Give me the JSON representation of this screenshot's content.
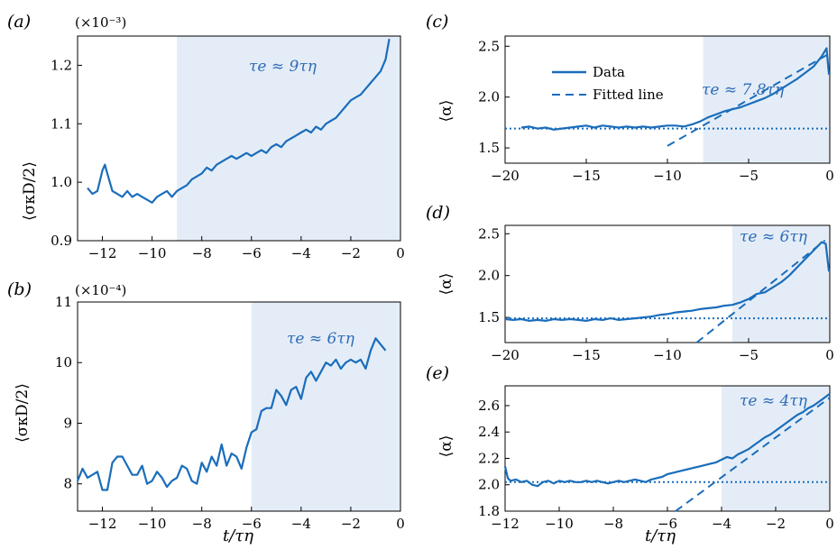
{
  "colors": {
    "line": "#1a6dbb",
    "shade": "#e4edf7",
    "annotation": "#2f6cb8"
  },
  "chart_data": [
    {
      "id": "a",
      "type": "line",
      "panel_label": "(a)",
      "multiplier": "(×10⁻³)",
      "ylabel": "⟨σκD/2⟩",
      "xlabel": "",
      "xlim": [
        -13,
        0
      ],
      "ylim": [
        0.9,
        1.25
      ],
      "xticks": [
        -12,
        -10,
        -8,
        -6,
        -4,
        -2,
        0
      ],
      "xtick_labels": [
        "−12",
        "−10",
        "−8",
        "−6",
        "−4",
        "−2",
        "0"
      ],
      "yticks": [
        0.9,
        1.0,
        1.1,
        1.2
      ],
      "ytick_labels": [
        "0.9",
        "1.0",
        "1.1",
        "1.2"
      ],
      "shaded_from": -9,
      "annotation": "τe ≈ 9τη",
      "series": [
        {
          "x": [
            -12.6,
            -12.4,
            -12.2,
            -12.0,
            -11.9,
            -11.8,
            -11.6,
            -11.4,
            -11.2,
            -11.0,
            -10.8,
            -10.6,
            -10.4,
            -10.2,
            -10.0,
            -9.8,
            -9.6,
            -9.4,
            -9.2,
            -9.0,
            -8.8,
            -8.6,
            -8.4,
            -8.2,
            -8.0,
            -7.8,
            -7.6,
            -7.4,
            -7.2,
            -7.0,
            -6.8,
            -6.6,
            -6.4,
            -6.2,
            -6.0,
            -5.8,
            -5.6,
            -5.4,
            -5.2,
            -5.0,
            -4.8,
            -4.6,
            -4.4,
            -4.2,
            -4.0,
            -3.8,
            -3.6,
            -3.4,
            -3.2,
            -3.0,
            -2.8,
            -2.6,
            -2.4,
            -2.2,
            -2.0,
            -1.8,
            -1.6,
            -1.4,
            -1.2,
            -1.0,
            -0.8,
            -0.6,
            -0.45
          ],
          "y": [
            0.99,
            0.98,
            0.985,
            1.02,
            1.03,
            1.015,
            0.985,
            0.98,
            0.975,
            0.985,
            0.975,
            0.98,
            0.975,
            0.97,
            0.965,
            0.975,
            0.98,
            0.985,
            0.975,
            0.985,
            0.99,
            0.995,
            1.005,
            1.01,
            1.015,
            1.025,
            1.02,
            1.03,
            1.035,
            1.04,
            1.045,
            1.04,
            1.045,
            1.05,
            1.045,
            1.05,
            1.055,
            1.05,
            1.06,
            1.065,
            1.06,
            1.07,
            1.075,
            1.08,
            1.085,
            1.09,
            1.085,
            1.095,
            1.09,
            1.1,
            1.105,
            1.11,
            1.12,
            1.13,
            1.14,
            1.145,
            1.15,
            1.16,
            1.17,
            1.18,
            1.19,
            1.21,
            1.245
          ]
        }
      ]
    },
    {
      "id": "b",
      "type": "line",
      "panel_label": "(b)",
      "multiplier": "(×10⁻⁴)",
      "ylabel": "⟨σκD/2⟩",
      "xlabel": "t/τη",
      "xlim": [
        -13,
        0
      ],
      "ylim": [
        7.55,
        11
      ],
      "xticks": [
        -12,
        -10,
        -8,
        -6,
        -4,
        -2,
        0
      ],
      "xtick_labels": [
        "−12",
        "−10",
        "−8",
        "−6",
        "−4",
        "−2",
        "0"
      ],
      "yticks": [
        8,
        9,
        10,
        11
      ],
      "ytick_labels": [
        "8",
        "9",
        "10",
        "11"
      ],
      "shaded_from": -6,
      "annotation": "τe ≈ 6τη",
      "series": [
        {
          "x": [
            -13.0,
            -12.8,
            -12.6,
            -12.4,
            -12.2,
            -12.0,
            -11.8,
            -11.6,
            -11.4,
            -11.2,
            -11.0,
            -10.8,
            -10.6,
            -10.4,
            -10.2,
            -10.0,
            -9.8,
            -9.6,
            -9.4,
            -9.2,
            -9.0,
            -8.8,
            -8.6,
            -8.4,
            -8.2,
            -8.0,
            -7.8,
            -7.6,
            -7.4,
            -7.2,
            -7.0,
            -6.8,
            -6.6,
            -6.4,
            -6.2,
            -6.0,
            -5.8,
            -5.6,
            -5.4,
            -5.2,
            -5.0,
            -4.8,
            -4.6,
            -4.4,
            -4.2,
            -4.0,
            -3.8,
            -3.6,
            -3.4,
            -3.2,
            -3.0,
            -2.8,
            -2.6,
            -2.4,
            -2.2,
            -2.0,
            -1.8,
            -1.6,
            -1.4,
            -1.2,
            -1.0,
            -0.8,
            -0.6
          ],
          "y": [
            8.05,
            8.25,
            8.1,
            8.15,
            8.2,
            7.9,
            7.9,
            8.35,
            8.45,
            8.45,
            8.3,
            8.15,
            8.15,
            8.3,
            8.0,
            8.05,
            8.2,
            8.1,
            7.95,
            8.05,
            8.1,
            8.3,
            8.25,
            8.05,
            8.0,
            8.35,
            8.2,
            8.45,
            8.3,
            8.65,
            8.3,
            8.5,
            8.45,
            8.25,
            8.6,
            8.85,
            8.9,
            9.2,
            9.25,
            9.25,
            9.55,
            9.45,
            9.3,
            9.55,
            9.6,
            9.4,
            9.75,
            9.85,
            9.7,
            9.85,
            10.0,
            9.95,
            10.05,
            9.9,
            10.0,
            10.05,
            10.0,
            10.05,
            9.9,
            10.2,
            10.4,
            10.3,
            10.2
          ]
        }
      ]
    },
    {
      "id": "c",
      "type": "line",
      "panel_label": "(c)",
      "ylabel": "⟨α⟩",
      "xlabel": "",
      "xlim": [
        -20,
        0
      ],
      "ylim": [
        1.35,
        2.6
      ],
      "xticks": [
        -20,
        -15,
        -10,
        -5,
        0
      ],
      "xtick_labels": [
        "−20",
        "−15",
        "−10",
        "−5",
        "0"
      ],
      "yticks": [
        1.5,
        2.0,
        2.5
      ],
      "ytick_labels": [
        "1.5",
        "2.0",
        "2.5"
      ],
      "shaded_from": -7.8,
      "annotation": "τe ≈ 7.8τη",
      "baseline": 1.69,
      "fit": {
        "x": [
          -10,
          0
        ],
        "y": [
          1.52,
          2.43
        ]
      },
      "legend": [
        "Data",
        "Fitted line"
      ],
      "series": [
        {
          "name": "Data",
          "x": [
            -19,
            -18.5,
            -18,
            -17.5,
            -17,
            -16.5,
            -16,
            -15.5,
            -15,
            -14.5,
            -14,
            -13.5,
            -13,
            -12.5,
            -12,
            -11.5,
            -11,
            -10.5,
            -10,
            -9.5,
            -9,
            -8.5,
            -8,
            -7.5,
            -7,
            -6.5,
            -6,
            -5.5,
            -5,
            -4.5,
            -4,
            -3.5,
            -3,
            -2.5,
            -2,
            -1.5,
            -1,
            -0.5,
            -0.2,
            -0.05
          ],
          "y": [
            1.7,
            1.71,
            1.69,
            1.7,
            1.68,
            1.69,
            1.7,
            1.71,
            1.72,
            1.7,
            1.72,
            1.71,
            1.7,
            1.71,
            1.7,
            1.71,
            1.7,
            1.71,
            1.72,
            1.72,
            1.71,
            1.73,
            1.76,
            1.8,
            1.83,
            1.86,
            1.88,
            1.9,
            1.93,
            1.96,
            1.99,
            2.03,
            2.08,
            2.13,
            2.18,
            2.24,
            2.3,
            2.4,
            2.48,
            2.22
          ]
        }
      ]
    },
    {
      "id": "d",
      "type": "line",
      "panel_label": "(d)",
      "ylabel": "⟨α⟩",
      "xlabel": "",
      "xlim": [
        -20,
        0
      ],
      "ylim": [
        1.2,
        2.6
      ],
      "xticks": [
        -20,
        -15,
        -10,
        -5,
        0
      ],
      "xtick_labels": [
        "−20",
        "−15",
        "−10",
        "−5",
        "0"
      ],
      "yticks": [
        1.5,
        2.0,
        2.5
      ],
      "ytick_labels": [
        "1.5",
        "2.0",
        "2.5"
      ],
      "shaded_from": -6,
      "annotation": "τe ≈ 6τη",
      "baseline": 1.49,
      "fit": {
        "x": [
          -8.2,
          -0.3
        ],
        "y": [
          1.2,
          2.42
        ]
      },
      "series": [
        {
          "x": [
            -20,
            -19.5,
            -19,
            -18.5,
            -18,
            -17.5,
            -17,
            -16.5,
            -16,
            -15.5,
            -15,
            -14.5,
            -14,
            -13.5,
            -13,
            -12.5,
            -12,
            -11.5,
            -11,
            -10.5,
            -10,
            -9.5,
            -9,
            -8.5,
            -8,
            -7.5,
            -7,
            -6.5,
            -6,
            -5.5,
            -5,
            -4.5,
            -4,
            -3.5,
            -3,
            -2.5,
            -2,
            -1.5,
            -1,
            -0.5,
            -0.25,
            -0.05
          ],
          "y": [
            1.48,
            1.47,
            1.48,
            1.46,
            1.47,
            1.46,
            1.48,
            1.47,
            1.48,
            1.47,
            1.46,
            1.48,
            1.47,
            1.49,
            1.47,
            1.48,
            1.49,
            1.5,
            1.51,
            1.53,
            1.54,
            1.56,
            1.57,
            1.58,
            1.6,
            1.61,
            1.62,
            1.64,
            1.65,
            1.68,
            1.72,
            1.78,
            1.8,
            1.86,
            1.92,
            2.0,
            2.1,
            2.2,
            2.3,
            2.4,
            2.38,
            2.05
          ]
        }
      ]
    },
    {
      "id": "e",
      "type": "line",
      "panel_label": "(e)",
      "ylabel": "⟨α⟩",
      "xlabel": "t/τη",
      "xlim": [
        -12,
        0
      ],
      "ylim": [
        1.8,
        2.75
      ],
      "xticks": [
        -12,
        -10,
        -8,
        -6,
        -4,
        -2,
        0
      ],
      "xtick_labels": [
        "−12",
        "−10",
        "−8",
        "−6",
        "−4",
        "−2",
        "0"
      ],
      "yticks": [
        1.8,
        2.0,
        2.2,
        2.4,
        2.6
      ],
      "ytick_labels": [
        "1.8",
        "2.0",
        "2.2",
        "2.4",
        "2.6"
      ],
      "shaded_from": -4,
      "annotation": "τe ≈ 4τη",
      "baseline": 2.02,
      "fit": {
        "x": [
          -5.7,
          0
        ],
        "y": [
          1.8,
          2.66
        ]
      },
      "series": [
        {
          "x": [
            -12,
            -11.9,
            -11.8,
            -11.6,
            -11.4,
            -11.2,
            -11.0,
            -10.8,
            -10.6,
            -10.4,
            -10.2,
            -10.0,
            -9.8,
            -9.6,
            -9.4,
            -9.2,
            -9.0,
            -8.8,
            -8.6,
            -8.4,
            -8.2,
            -8.0,
            -7.8,
            -7.6,
            -7.4,
            -7.2,
            -7.0,
            -6.8,
            -6.6,
            -6.4,
            -6.2,
            -6.0,
            -5.8,
            -5.6,
            -5.4,
            -5.2,
            -5.0,
            -4.8,
            -4.6,
            -4.4,
            -4.2,
            -4.0,
            -3.8,
            -3.6,
            -3.4,
            -3.2,
            -3.0,
            -2.8,
            -2.6,
            -2.4,
            -2.2,
            -2.0,
            -1.8,
            -1.6,
            -1.4,
            -1.2,
            -1.0,
            -0.8,
            -0.6,
            -0.4,
            -0.2,
            0
          ],
          "y": [
            2.14,
            2.05,
            2.03,
            2.04,
            2.02,
            2.03,
            2.0,
            1.99,
            2.02,
            2.03,
            2.01,
            2.03,
            2.02,
            2.03,
            2.02,
            2.02,
            2.03,
            2.02,
            2.03,
            2.02,
            2.01,
            2.02,
            2.03,
            2.02,
            2.03,
            2.04,
            2.03,
            2.02,
            2.04,
            2.05,
            2.06,
            2.08,
            2.09,
            2.1,
            2.11,
            2.12,
            2.13,
            2.14,
            2.15,
            2.16,
            2.17,
            2.19,
            2.21,
            2.2,
            2.23,
            2.25,
            2.27,
            2.3,
            2.33,
            2.36,
            2.38,
            2.41,
            2.44,
            2.47,
            2.5,
            2.53,
            2.55,
            2.58,
            2.6,
            2.63,
            2.66,
            2.69
          ]
        }
      ]
    }
  ]
}
